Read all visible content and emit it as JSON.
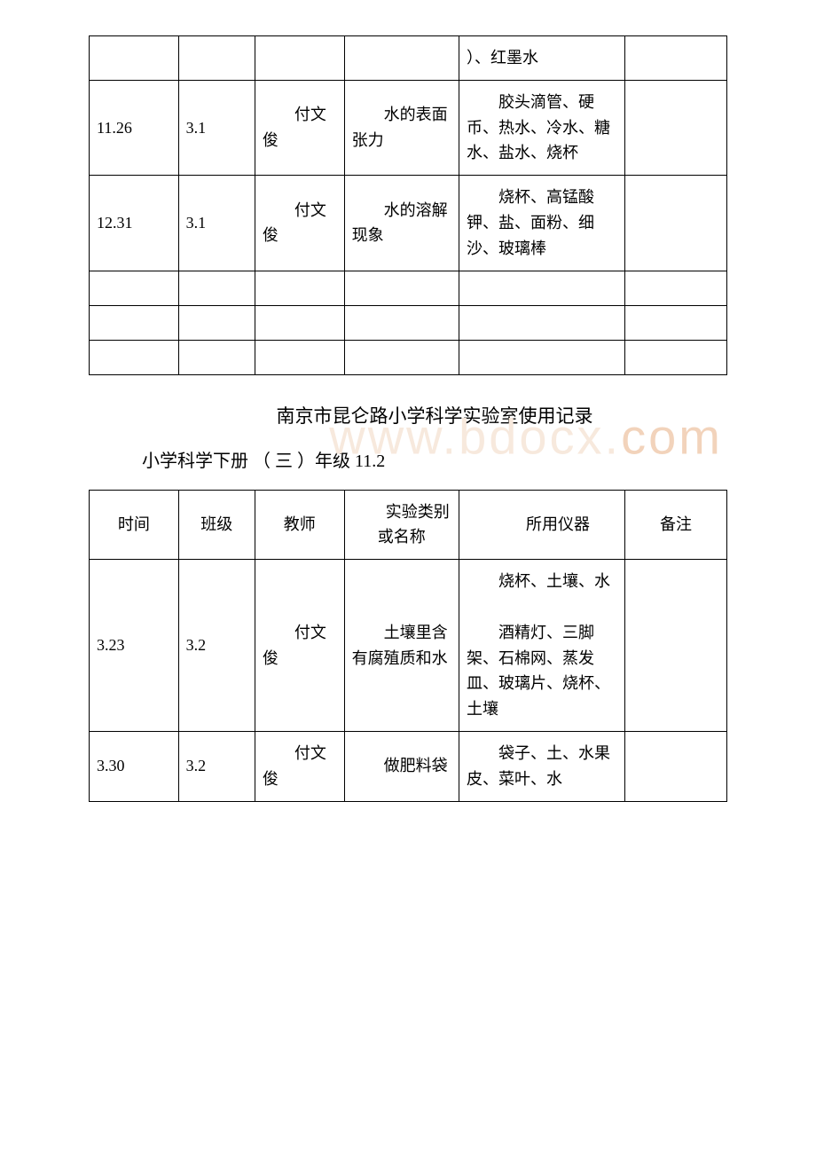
{
  "table1": {
    "rows": [
      {
        "time": "",
        "class": "",
        "teacher": "",
        "experiment": "",
        "tools": "）、红墨水",
        "note": ""
      },
      {
        "time": "11.26",
        "class": "3.1",
        "teacher": "付文俊",
        "experiment": "水的表面张力",
        "tools": "胶头滴管、硬币、热水、冷水、糖水、盐水、烧杯",
        "note": ""
      },
      {
        "time": "12.31",
        "class": "3.1",
        "teacher": "付文俊",
        "experiment": "水的溶解现象",
        "tools": "烧杯、高锰酸钾、盐、面粉、细沙、玻璃棒",
        "note": ""
      }
    ]
  },
  "section": {
    "title": "南京市昆仑路小学科学实验室使用记录",
    "subtitle": "小学科学下册 （ 三 ）年级 11.2",
    "watermark": "www.bdocx.com"
  },
  "table2": {
    "headers": {
      "time": "时间",
      "class": "班级",
      "teacher": "教师",
      "experiment": "实验类别或名称",
      "tools": "所用仪器",
      "note": "备注"
    },
    "rows": [
      {
        "time": "3.23",
        "class": "3.2",
        "teacher": "付文俊",
        "experiment": "土壤里含有腐殖质和水",
        "tools_a": "烧杯、土壤、水",
        "tools_b": "酒精灯、三脚架、石棉网、蒸发皿、玻璃片、烧杯、土壤",
        "note": ""
      },
      {
        "time": "3.30",
        "class": "3.2",
        "teacher": "付文俊",
        "experiment": "做肥料袋",
        "tools": "袋子、土、水果皮、菜叶、水",
        "note": ""
      }
    ]
  }
}
